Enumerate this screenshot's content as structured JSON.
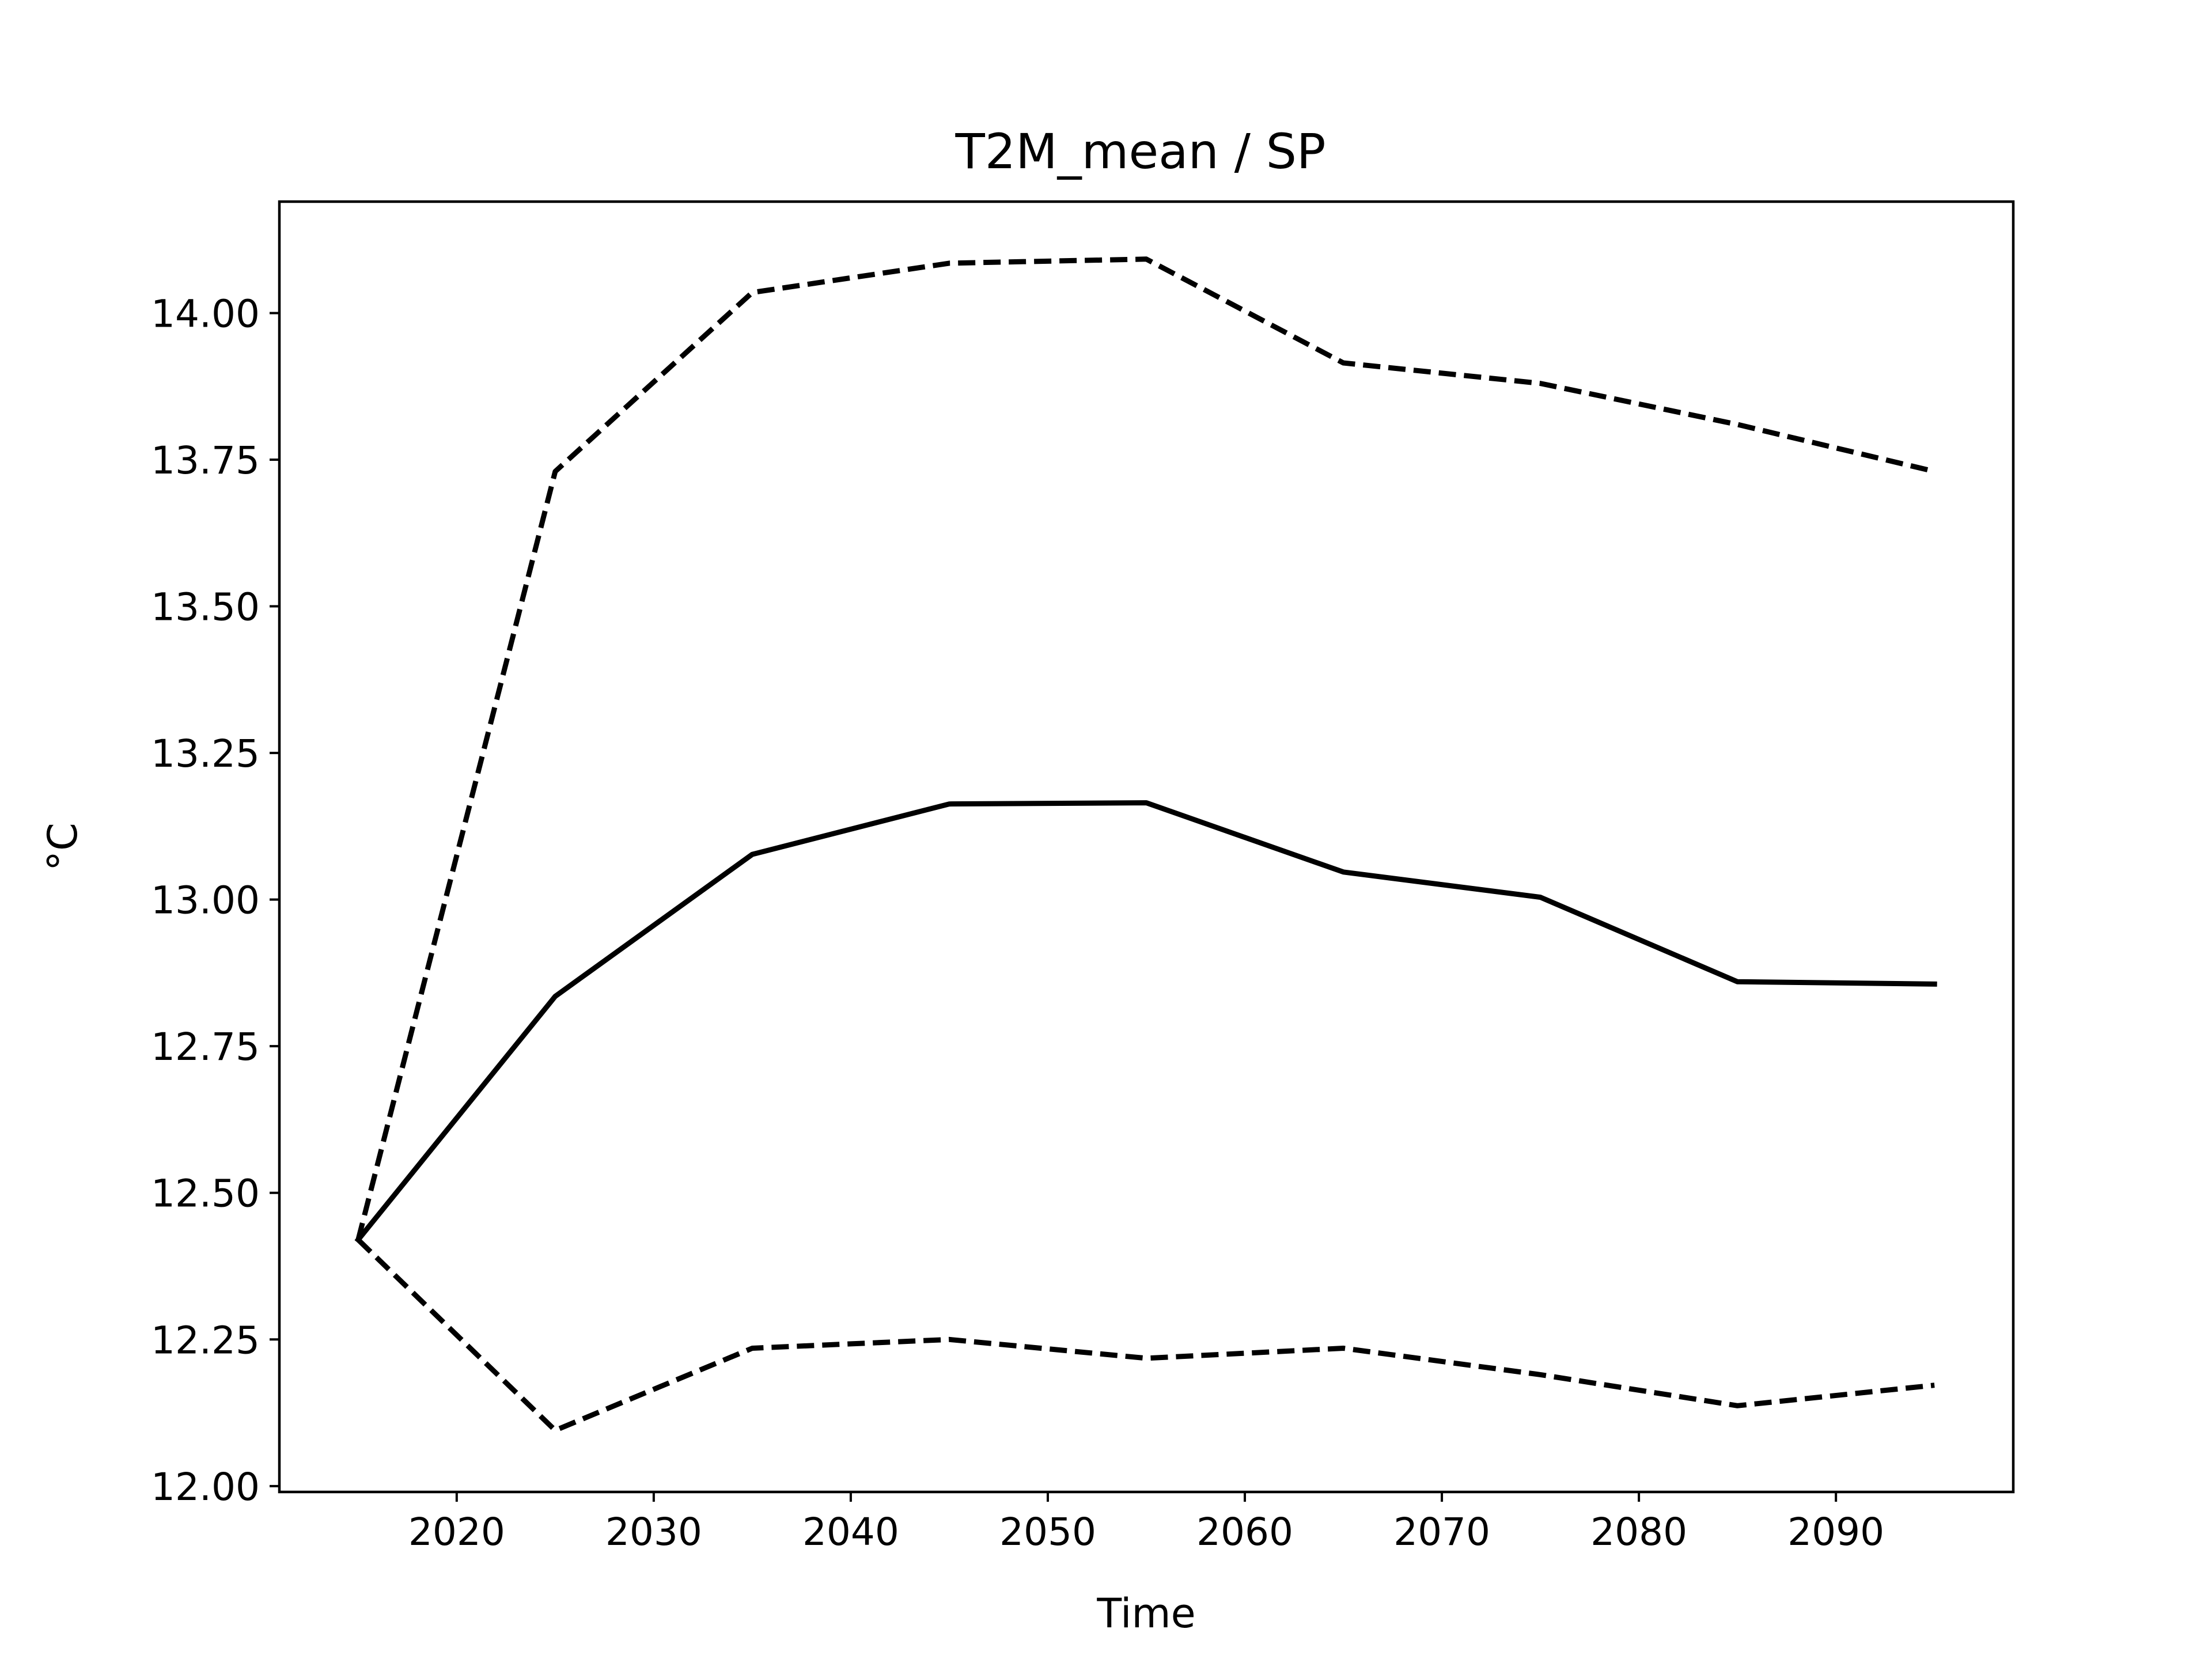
{
  "chart_data": {
    "type": "line",
    "title": "T2M_mean / SP",
    "xlabel": "Time",
    "ylabel": "°C",
    "xlim": [
      2011,
      2099
    ],
    "ylim": [
      11.99,
      14.19
    ],
    "xticks": [
      2020,
      2030,
      2040,
      2050,
      2060,
      2070,
      2080,
      2090
    ],
    "yticks": [
      "12.00",
      "12.25",
      "12.50",
      "12.75",
      "13.00",
      "13.25",
      "13.50",
      "13.75",
      "14.00"
    ],
    "grid": false,
    "legend": "none",
    "x": [
      2015,
      2025,
      2035,
      2045,
      2055,
      2065,
      2075,
      2085,
      2095
    ],
    "series": [
      {
        "style": "solid",
        "color": "#000000",
        "values": [
          12.42,
          12.835,
          13.077,
          13.163,
          13.165,
          13.047,
          13.004,
          12.86,
          12.856
        ]
      },
      {
        "style": "dashed",
        "color": "#000000",
        "values": [
          12.42,
          13.73,
          14.035,
          14.085,
          14.092,
          13.915,
          13.88,
          13.81,
          13.73
        ]
      },
      {
        "style": "dashed",
        "color": "#000000",
        "values": [
          12.42,
          12.095,
          12.235,
          12.25,
          12.218,
          12.235,
          12.19,
          12.137,
          12.172
        ]
      }
    ]
  }
}
